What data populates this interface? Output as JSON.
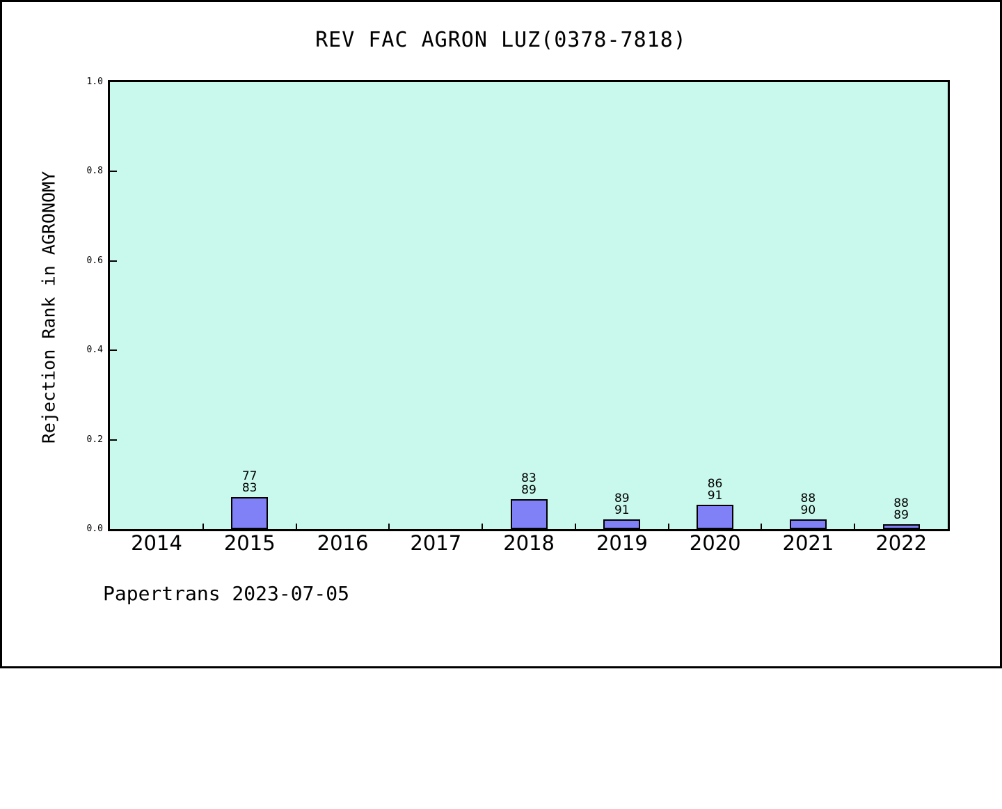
{
  "window": {
    "background": "#ffffff",
    "border_color": "#000000"
  },
  "chart_data": {
    "type": "bar",
    "title": "REV FAC AGRON LUZ(0378-7818)",
    "ylabel": "Rejection Rank in AGRONOMY",
    "xlabel": "",
    "footer": "Papertrans 2023-07-05",
    "categories": [
      "2014",
      "2015",
      "2016",
      "2017",
      "2018",
      "2019",
      "2020",
      "2021",
      "2022"
    ],
    "series": [
      {
        "name": "Rejection Rank",
        "values": [
          null,
          0.0723,
          null,
          null,
          0.0674,
          0.022,
          0.0549,
          0.0222,
          0.0112
        ]
      }
    ],
    "bar_annotations": [
      null,
      {
        "rank": "77",
        "total": "83"
      },
      null,
      null,
      {
        "rank": "83",
        "total": "89"
      },
      {
        "rank": "89",
        "total": "91"
      },
      {
        "rank": "86",
        "total": "91"
      },
      {
        "rank": "88",
        "total": "90"
      },
      {
        "rank": "88",
        "total": "89"
      }
    ],
    "ylim": [
      0.0,
      1.0
    ],
    "yticks": [
      "0.0",
      "0.2",
      "0.4",
      "0.6",
      "0.8",
      "1.0"
    ],
    "grid": false,
    "legend": "none",
    "plot_background": "#c9f9ec",
    "bar_color": "#8181f7",
    "bar_edge_color": "#000000"
  }
}
